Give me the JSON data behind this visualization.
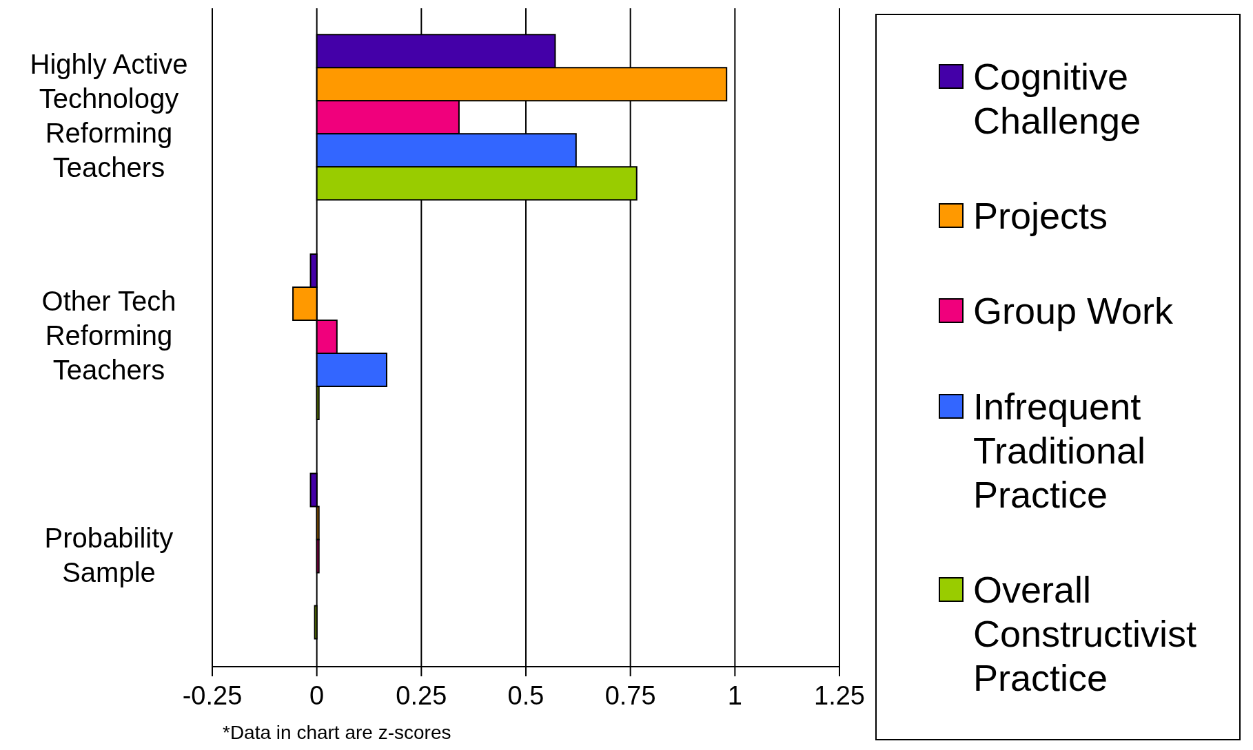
{
  "chart_data": {
    "type": "bar",
    "orientation": "horizontal",
    "categories": [
      "Highly Active Technology Reforming Teachers",
      "Other Tech Reforming Teachers",
      "Probability Sample"
    ],
    "series": [
      {
        "name": "Cognitive Challenge",
        "color": "#4400a8",
        "values": [
          0.57,
          -0.015,
          -0.015
        ]
      },
      {
        "name": "Projects",
        "color": "#ff9900",
        "values": [
          0.98,
          -0.057,
          0.005
        ]
      },
      {
        "name": "Group Work",
        "color": "#f0007c",
        "values": [
          0.34,
          0.048,
          0.005
        ]
      },
      {
        "name": "Infrequent Traditional Practice",
        "color": "#3366ff",
        "values": [
          0.62,
          0.167,
          0
        ]
      },
      {
        "name": "Overall Constructivist Practice",
        "color": "#99cc00",
        "values": [
          0.765,
          0.005,
          -0.005
        ]
      }
    ],
    "xlim": [
      -0.25,
      1.25
    ],
    "xticks": [
      -0.25,
      0,
      0.25,
      0.5,
      0.75,
      1,
      1.25
    ],
    "grid": "x",
    "legend": "right",
    "annotations": [
      "*Data in chart are z-scores"
    ]
  }
}
